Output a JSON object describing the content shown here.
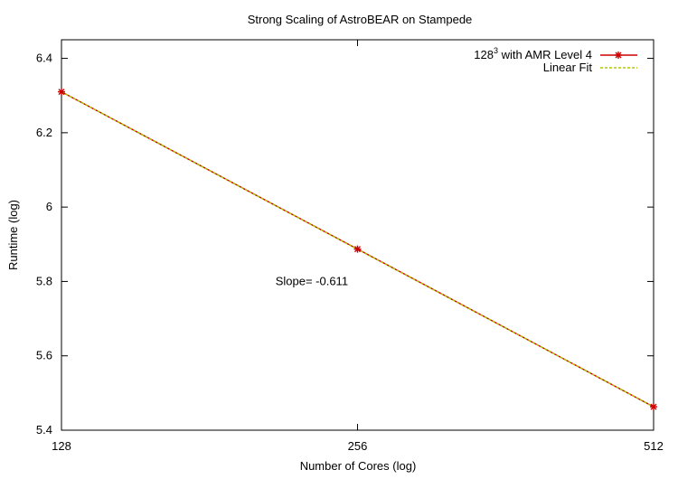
{
  "chart_data": {
    "type": "line",
    "title": "Strong Scaling of AstroBEAR on Stampede",
    "xlabel": "Number of Cores (log)",
    "ylabel": "Runtime (log)",
    "x_scale": "log2",
    "xlim": [
      128,
      512
    ],
    "ylim": [
      5.4,
      6.45
    ],
    "x_ticks": [
      "128",
      "256",
      "512"
    ],
    "y_ticks": [
      "5.4",
      "5.6",
      "5.8",
      "6",
      "6.2",
      "6.4"
    ],
    "grid": false,
    "legend_position": "top-right",
    "series": [
      {
        "name_base": "128",
        "name_sup": "3",
        "name_rest": " with AMR Level 4",
        "color": "#cc0000",
        "style": "line-with-asterisk-markers",
        "x": [
          128,
          256,
          512
        ],
        "y": [
          6.31,
          5.887,
          5.463
        ]
      },
      {
        "name": "Linear Fit",
        "color": "#b0c800",
        "style": "dashed",
        "x": [
          128,
          512
        ],
        "y": [
          6.31,
          5.463
        ]
      }
    ],
    "annotations": [
      {
        "text": "Slope= -0.611",
        "x": 230,
        "y": 5.79
      }
    ]
  }
}
